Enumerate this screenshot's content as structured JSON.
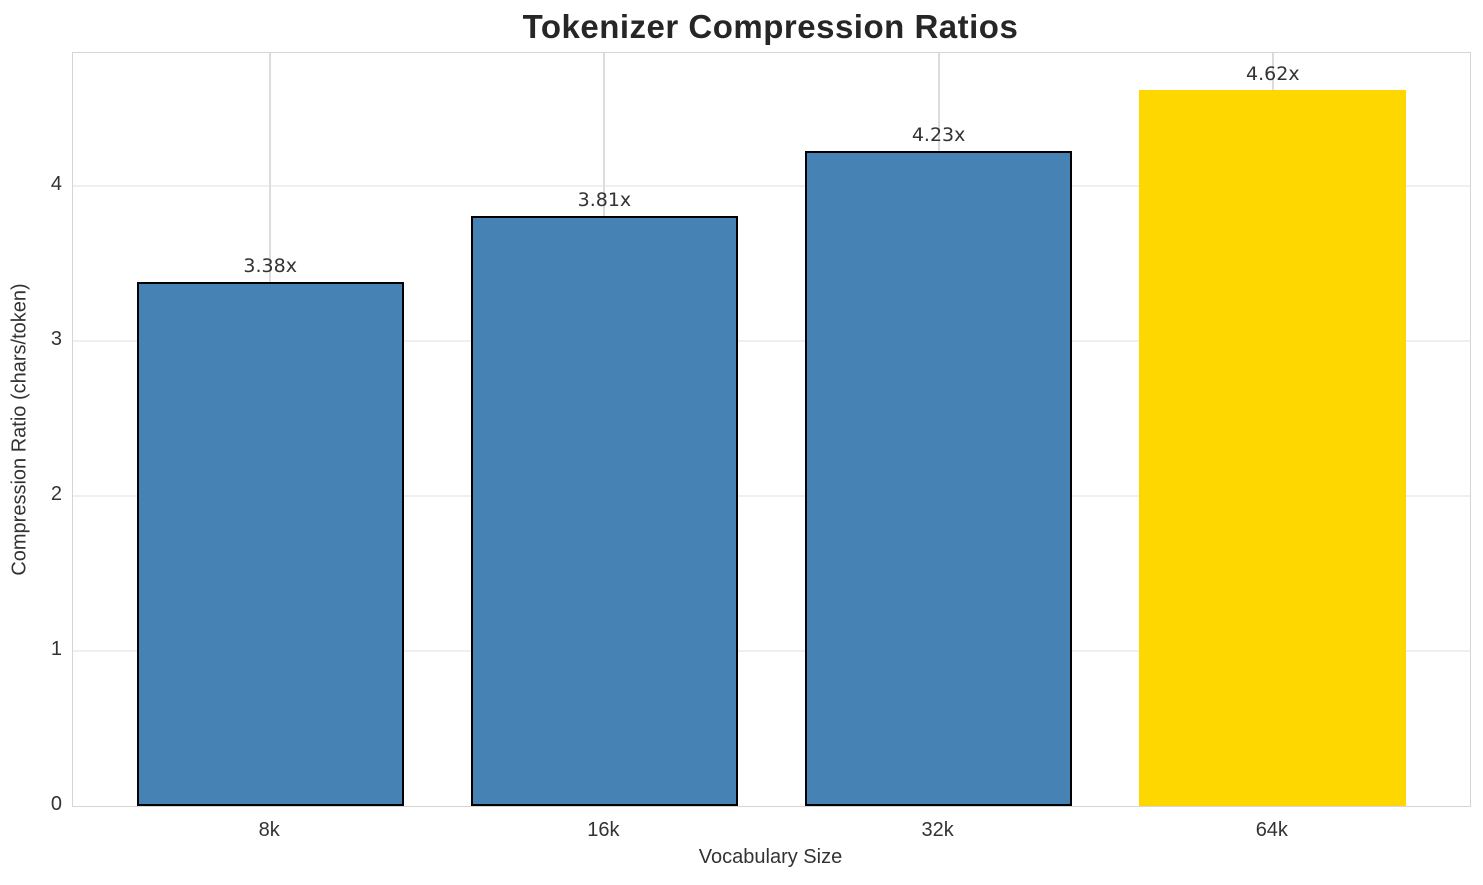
{
  "chart_data": {
    "type": "bar",
    "title": "Tokenizer Compression Ratios",
    "xlabel": "Vocabulary Size",
    "ylabel": "Compression Ratio (chars/token)",
    "categories": [
      "8k",
      "16k",
      "32k",
      "64k"
    ],
    "values": [
      3.38,
      3.81,
      4.23,
      4.62
    ],
    "value_labels": [
      "3.38x",
      "3.81x",
      "4.23x",
      "4.62x"
    ],
    "yticks": [
      0,
      1,
      2,
      3,
      4
    ],
    "ylim": [
      0,
      4.86
    ],
    "xlim": [
      -0.59,
      3.59
    ],
    "bar_width": 0.8,
    "grid": true,
    "legend": "none",
    "bar_colors": [
      "#4682B4",
      "#4682B4",
      "#4682B4",
      "#FFD700"
    ],
    "bar_edge_colors": [
      "#000000",
      "#000000",
      "#000000",
      "none"
    ],
    "style": {
      "background": "#ffffff",
      "grid_color_h": "#efefef",
      "grid_color_v": "#dcdcdc",
      "spine_color": "#d5d5d5",
      "title_color": "#262626",
      "text_color": "#333333"
    }
  }
}
